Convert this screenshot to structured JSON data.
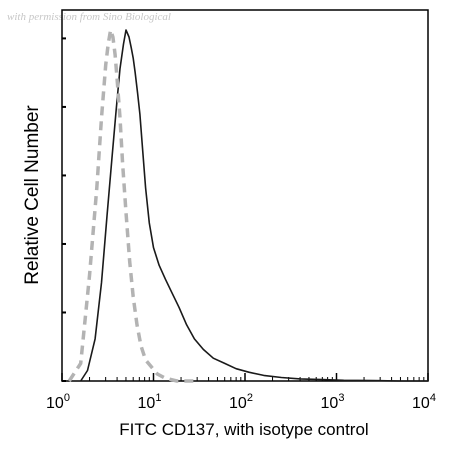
{
  "watermark": "with permission from Sino Biological",
  "chart_data": {
    "type": "histogram",
    "xlabel": "FITC CD137, with isotype control",
    "ylabel": "Relative Cell Number",
    "x_scale": "log",
    "xlim": [
      1,
      10000
    ],
    "ylim": [
      0,
      1
    ],
    "x_ticks": [
      {
        "value": 1,
        "base": "10",
        "exp": "0"
      },
      {
        "value": 10,
        "base": "10",
        "exp": "1"
      },
      {
        "value": 100,
        "base": "10",
        "exp": "2"
      },
      {
        "value": 1000,
        "base": "10",
        "exp": "3"
      },
      {
        "value": 10000,
        "base": "10",
        "exp": "4"
      }
    ],
    "y_ticks_labeled": false,
    "series": [
      {
        "style": "solid",
        "color": "#1a1a1a",
        "x": [
          1.6,
          1.9,
          2.3,
          2.7,
          3.1,
          3.5,
          3.9,
          4.3,
          4.7,
          5.0,
          5.4,
          5.7,
          6.0,
          6.3,
          6.7,
          7.1,
          7.6,
          8.2,
          9.0,
          10.0,
          11.5,
          13.5,
          16,
          19,
          23,
          28,
          35,
          45,
          60,
          80,
          110,
          160,
          250,
          400,
          700,
          1200,
          2500,
          5000,
          10000
        ],
        "y": [
          0.0,
          0.03,
          0.12,
          0.28,
          0.47,
          0.63,
          0.77,
          0.89,
          0.96,
          1.0,
          0.98,
          0.95,
          0.92,
          0.88,
          0.82,
          0.76,
          0.66,
          0.55,
          0.45,
          0.38,
          0.33,
          0.29,
          0.25,
          0.21,
          0.16,
          0.12,
          0.09,
          0.065,
          0.05,
          0.035,
          0.025,
          0.016,
          0.01,
          0.006,
          0.004,
          0.002,
          0.001,
          0.0,
          0.0
        ]
      },
      {
        "style": "dashed",
        "color": "#b3b3b3",
        "x": [
          1.2,
          1.6,
          2.0,
          2.4,
          2.7,
          3.0,
          3.2,
          3.4,
          3.6,
          3.8,
          4.0,
          4.3,
          4.6,
          5.0,
          5.5,
          6.0,
          6.6,
          7.3,
          8.2,
          9.5,
          11,
          13,
          15,
          18,
          22,
          30
        ],
        "y": [
          0.0,
          0.05,
          0.3,
          0.55,
          0.75,
          0.9,
          0.96,
          1.0,
          0.98,
          0.93,
          0.86,
          0.75,
          0.62,
          0.48,
          0.34,
          0.24,
          0.16,
          0.1,
          0.06,
          0.04,
          0.02,
          0.01,
          0.005,
          0.0,
          0.0,
          0.0
        ]
      }
    ]
  }
}
